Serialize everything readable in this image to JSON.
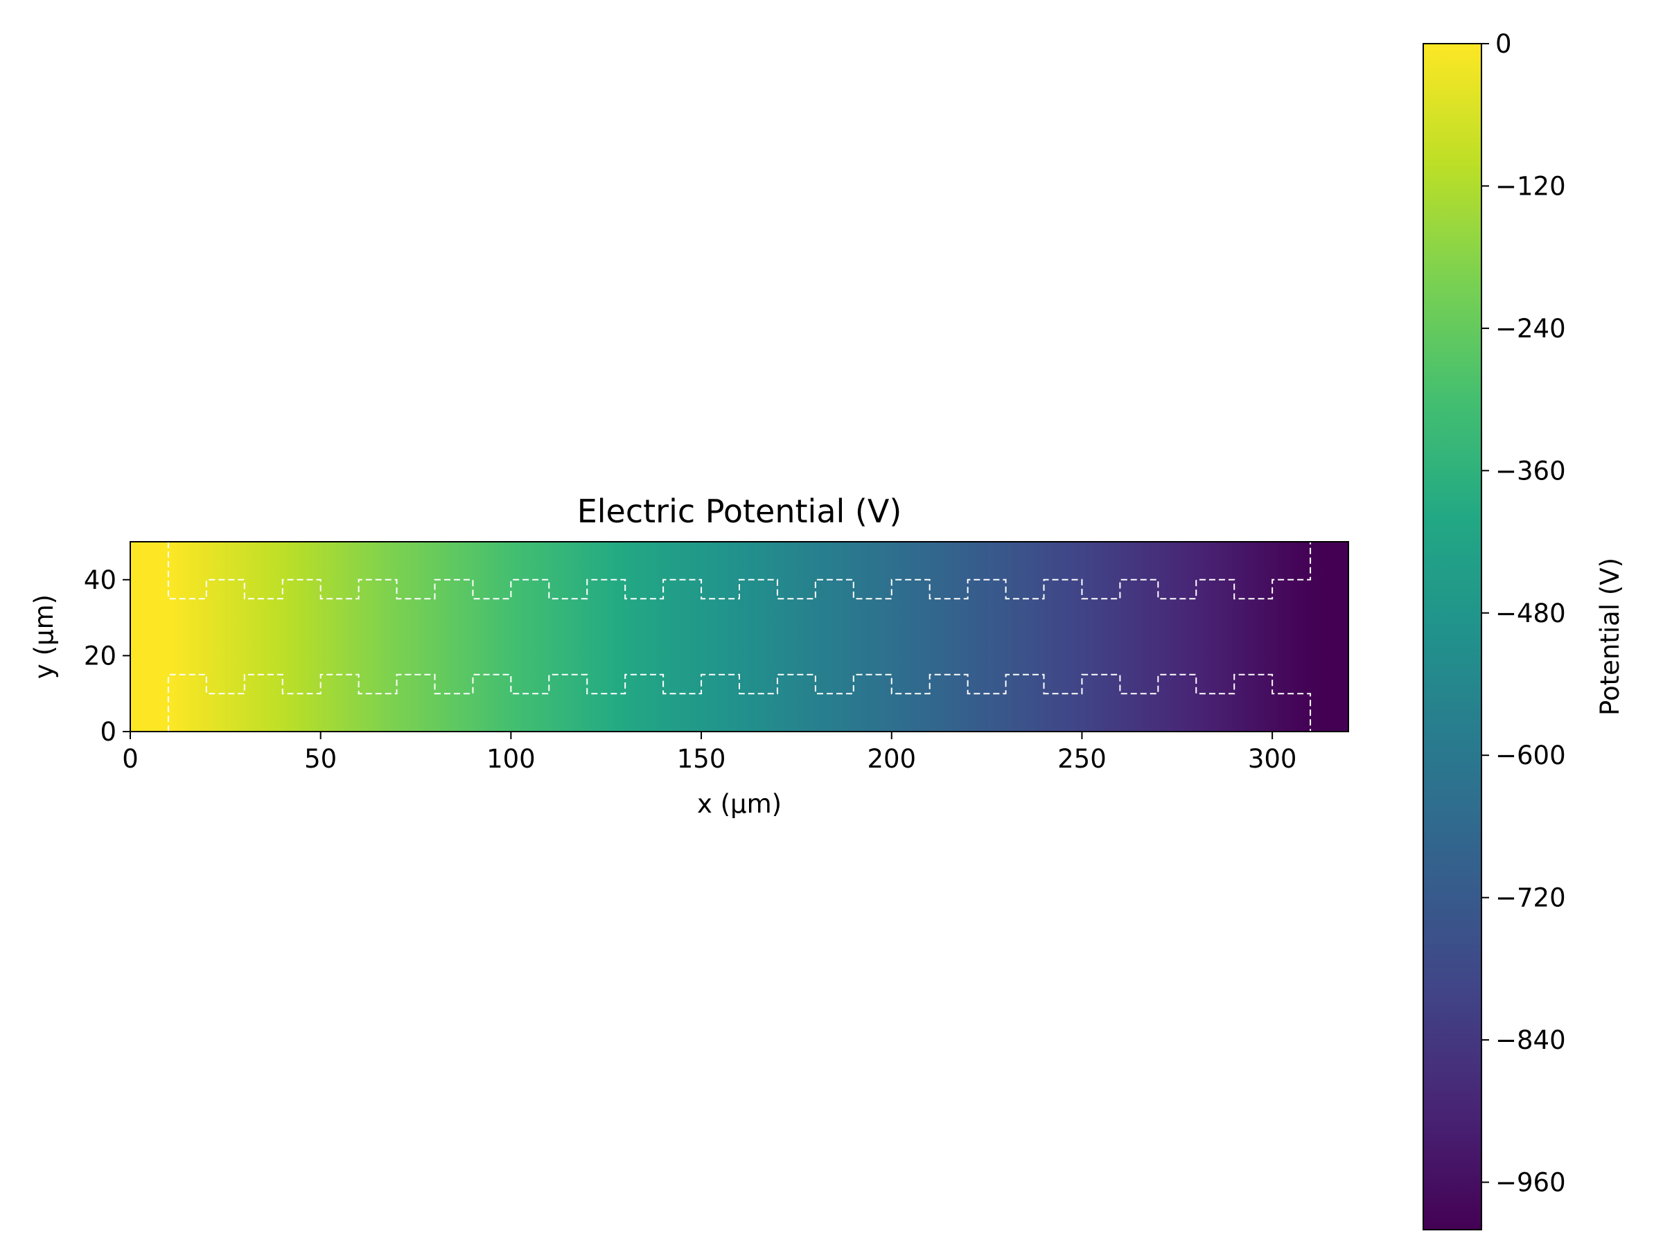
{
  "chart_data": [
    {
      "type": "heatmap",
      "title": "Electric Potential (V)",
      "xlabel": "x (µm)",
      "ylabel": "y (µm)",
      "xlim": [
        0,
        320
      ],
      "ylim": [
        0,
        50
      ],
      "x_ticks": [
        0,
        50,
        100,
        150,
        200,
        250,
        300
      ],
      "y_ticks": [
        0,
        20,
        40
      ],
      "x_tick_labels": [
        "0",
        "50",
        "100",
        "150",
        "200",
        "250",
        "300"
      ],
      "y_tick_labels": [
        "0",
        "20",
        "40"
      ],
      "grid": false,
      "colormap": "viridis",
      "value_range": [
        -1000,
        0
      ],
      "potential_profile": {
        "x": [
          0,
          10,
          310,
          320
        ],
        "v": [
          0,
          0,
          -1000,
          -1000
        ]
      },
      "channel_outline": {
        "style": "white dashed",
        "x_start": 10,
        "x_end": 310,
        "period": 20,
        "top_wall_y": [
          35,
          40
        ],
        "bottom_wall_y": [
          10,
          15
        ]
      }
    },
    {
      "type": "colorbar",
      "label": "Potential (V)",
      "range": [
        -1000,
        0
      ],
      "ticks": [
        0,
        -120,
        -240,
        -360,
        -480,
        -600,
        -720,
        -840,
        -960
      ],
      "tick_labels": [
        "0",
        "−120",
        "−240",
        "−360",
        "−480",
        "−600",
        "−720",
        "−840",
        "−960"
      ]
    }
  ]
}
